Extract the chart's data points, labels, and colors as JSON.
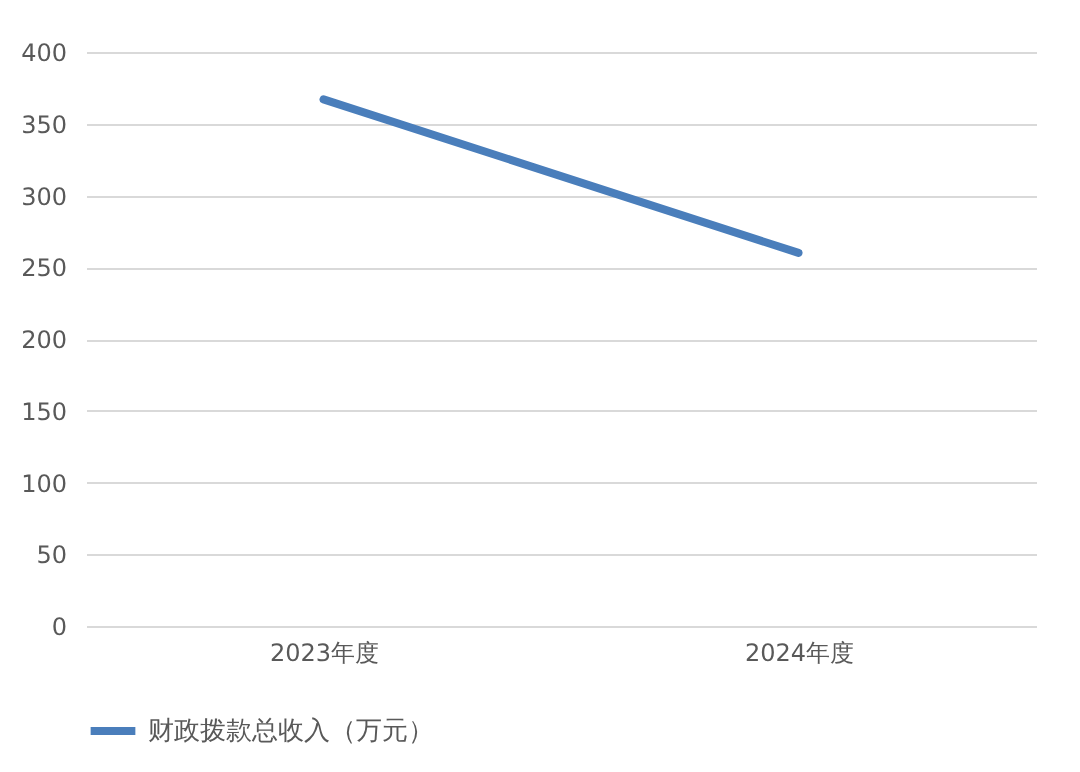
{
  "chart_data": {
    "type": "line",
    "categories": [
      "2023年度",
      "2024年度"
    ],
    "series": [
      {
        "name": "财政拨款总收入（万元）",
        "color": "#4a7ebb",
        "values": [
          367,
          260
        ]
      }
    ],
    "ylim": [
      0,
      400
    ],
    "yticks": [
      0,
      50,
      100,
      150,
      200,
      250,
      300,
      350,
      400
    ],
    "grid": "y",
    "legend": "bottom",
    "marker": "none",
    "line_style": "solid"
  }
}
